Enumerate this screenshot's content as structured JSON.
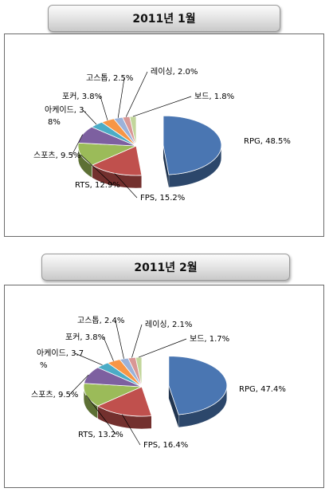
{
  "charts": [
    {
      "banner_title": "2011년 1월"
    },
    {
      "banner_title": "2011년 2월"
    }
  ],
  "chart_data": [
    {
      "type": "pie",
      "title": "2011년 1월",
      "categories": [
        "RPG",
        "FPS",
        "RTS",
        "스포츠",
        "아케이드",
        "포커",
        "고스톱",
        "레이싱",
        "보드"
      ],
      "values": [
        48.5,
        15.2,
        12.9,
        9.5,
        3.8,
        3.8,
        2.5,
        2.0,
        1.8
      ],
      "labels": [
        "RPG, 48.5%",
        "FPS, 15.2%",
        "RTS, 12.9%",
        "스포츠, 9.5%",
        "아케이드, 3.8%",
        "포커, 3.8%",
        "고스톱, 2.5%",
        "레이싱, 2.0%",
        "보드, 1.8%"
      ],
      "colors": [
        "#4a76b2",
        "#c0504d",
        "#9bbb59",
        "#7d60a0",
        "#4bacc6",
        "#f79646",
        "#9bb2d9",
        "#d99795",
        "#c2d69b"
      ]
    },
    {
      "type": "pie",
      "title": "2011년 2월",
      "categories": [
        "RPG",
        "FPS",
        "RTS",
        "스포츠",
        "아케이드",
        "포커",
        "고스톱",
        "레이싱",
        "보드"
      ],
      "values": [
        47.4,
        16.4,
        13.2,
        9.5,
        3.7,
        3.8,
        2.4,
        2.1,
        1.7
      ],
      "labels": [
        "RPG, 47.4%",
        "FPS, 16.4%",
        "RTS, 13.2%",
        "스포츠, 9.5%",
        "아케이드, 3.7%",
        "포커, 3.8%",
        "고스톱, 2.4%",
        "레이싱, 2.1%",
        "보드, 1.7%"
      ],
      "colors": [
        "#4a76b2",
        "#c0504d",
        "#9bbb59",
        "#7d60a0",
        "#4bacc6",
        "#f79646",
        "#9bb2d9",
        "#d99795",
        "#c2d69b"
      ]
    }
  ]
}
